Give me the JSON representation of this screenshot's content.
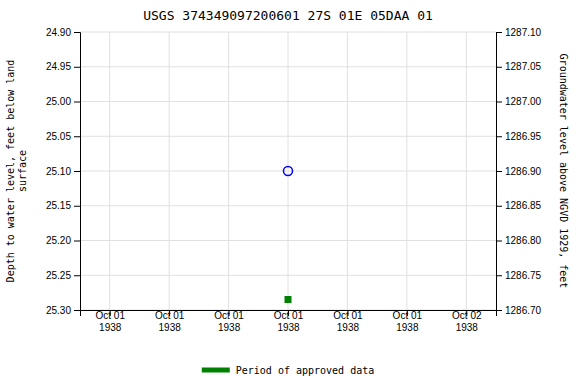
{
  "chart_data": {
    "type": "scatter",
    "title": "USGS 374349097200601 27S 01E 05DAA 01",
    "y_label": "Depth to water level, feet below land\nsurface",
    "y2_label": "Groundwater level above NGVD 1929, feet",
    "categories": [
      "Oct 01\n1938",
      "Oct 01\n1938",
      "Oct 01\n1938",
      "Oct 01\n1938",
      "Oct 01\n1938",
      "Oct 01\n1938",
      "Oct 02\n1938"
    ],
    "series": [
      {
        "color": "blue",
        "marker": "circle-open",
        "values": [
          null,
          null,
          null,
          25.1,
          null,
          null,
          null
        ]
      },
      {
        "name": "Period of approved data",
        "color": "#008000",
        "marker": "square",
        "values": [
          null,
          null,
          null,
          25.285,
          null,
          null,
          null
        ]
      }
    ],
    "ylim": [
      25.3,
      24.9
    ],
    "yticks": [
      {
        "value": 24.9,
        "label": "24.90"
      },
      24.95,
      {
        "value": 25.0,
        "label": "25.00"
      },
      25.05,
      {
        "value": 25.1,
        "label": "25.10"
      },
      25.15,
      {
        "value": 25.2,
        "label": "25.20"
      },
      25.25,
      {
        "value": 25.3,
        "label": "25.30"
      }
    ],
    "y2lim": [
      1286.7,
      1287.1
    ],
    "y2ticks": [
      {
        "value": 1286.7,
        "label": "1286.70"
      },
      1286.75,
      {
        "value": 1286.8,
        "label": "1286.80"
      },
      1286.85,
      {
        "value": 1286.9,
        "label": "1286.90"
      },
      1286.95,
      {
        "value": 1287.0,
        "label": "1287.00"
      },
      1287.05,
      {
        "value": 1287.1,
        "label": "1287.10"
      }
    ],
    "grid": true,
    "legend": "bottom"
  }
}
